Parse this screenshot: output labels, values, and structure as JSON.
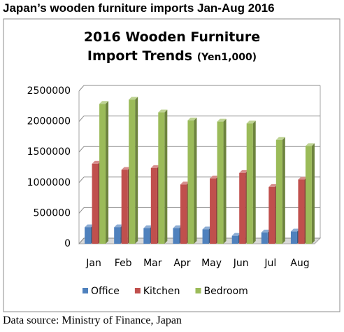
{
  "heading": "Japan’s wooden furniture imports Jan-Aug 2016",
  "chart_data": {
    "type": "bar",
    "title": "2016 Wooden Furniture Import Trends",
    "subtitle": "(Yen1,000)",
    "categories": [
      "Jan",
      "Feb",
      "Mar",
      "Apr",
      "May",
      "Jun",
      "Jul",
      "Aug"
    ],
    "series": [
      {
        "name": "Office",
        "color": "#4f81bd",
        "values": [
          270000,
          270000,
          255000,
          255000,
          235000,
          130000,
          185000,
          200000
        ]
      },
      {
        "name": "Kitchen",
        "color": "#c0504d",
        "values": [
          1310000,
          1210000,
          1240000,
          970000,
          1070000,
          1160000,
          930000,
          1050000
        ]
      },
      {
        "name": "Bedroom",
        "color": "#9bbb59",
        "values": [
          2290000,
          2360000,
          2150000,
          2020000,
          2000000,
          1970000,
          1700000,
          1600000
        ]
      }
    ],
    "ylim": [
      0,
      2500000
    ],
    "yticks": [
      0,
      500000,
      1000000,
      1500000,
      2000000,
      2500000
    ],
    "grid": true,
    "legend": "bottom"
  },
  "source": "Data source: Ministry of Finance, Japan"
}
